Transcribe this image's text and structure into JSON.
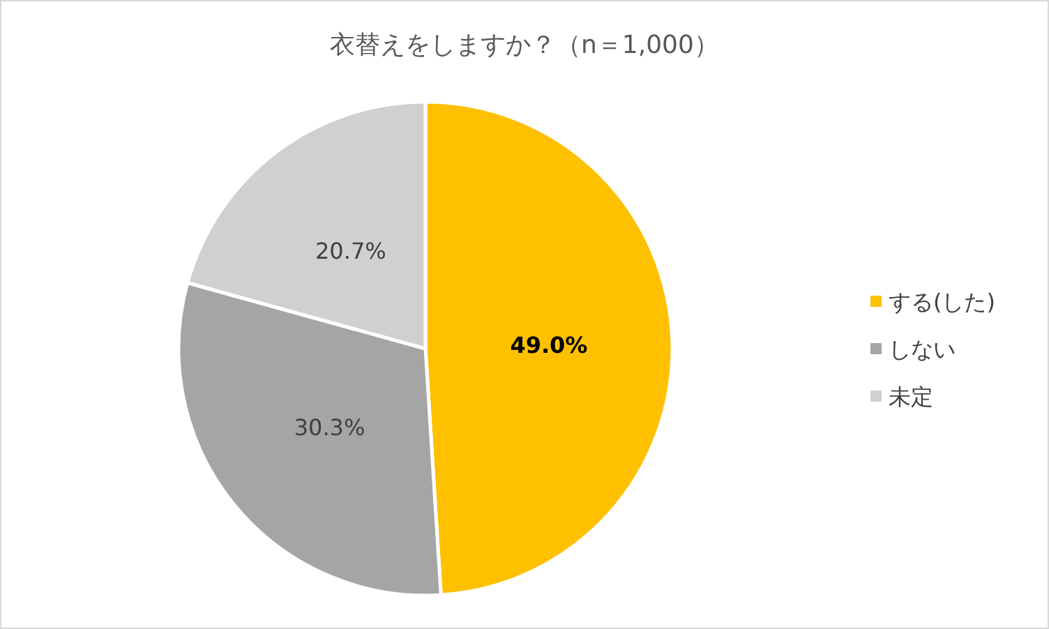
{
  "chart_data": {
    "type": "pie",
    "title": "衣替えをしますか？（n＝1,000）",
    "categories": [
      "する(した)",
      "しない",
      "未定"
    ],
    "values": [
      49.0,
      30.3,
      20.7
    ],
    "colors": [
      "#ffc000",
      "#a5a5a5",
      "#d0d0d0"
    ],
    "value_labels": [
      "49.0%",
      "30.3%",
      "20.7%"
    ],
    "legend": "right"
  }
}
